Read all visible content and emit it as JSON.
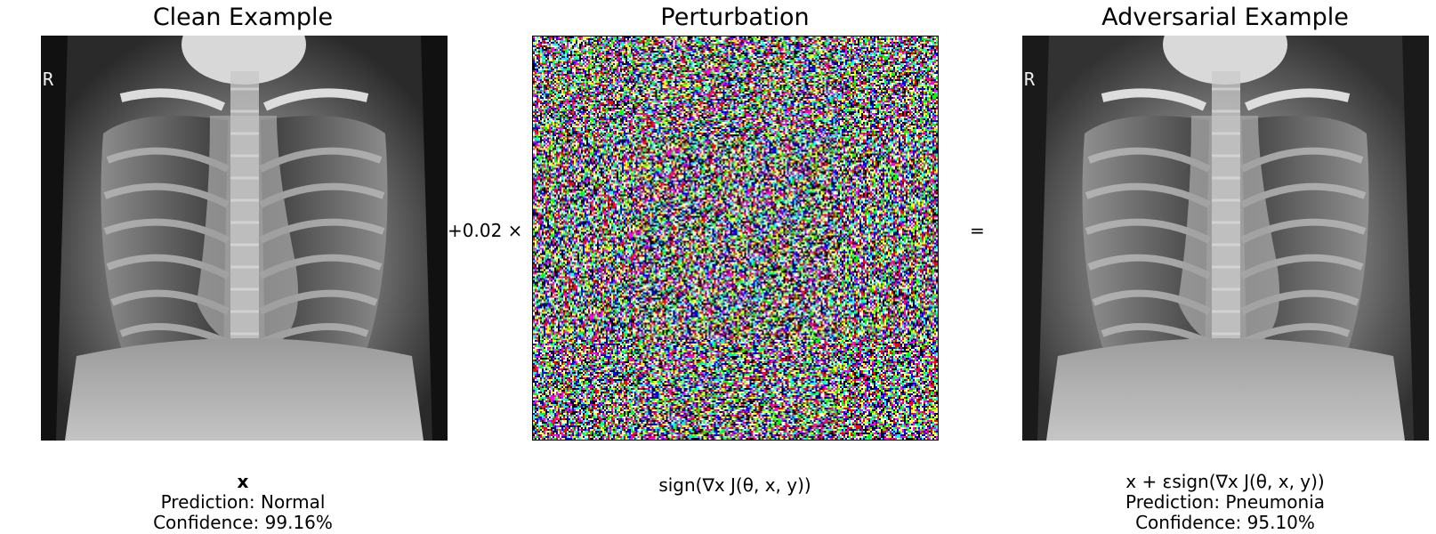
{
  "panels": {
    "clean": {
      "title": "Clean Example",
      "symbol": "x",
      "prediction": "Prediction: Normal",
      "confidence": "Confidence: 99.16%",
      "marker": "R"
    },
    "perturbation": {
      "title": "Perturbation",
      "formula": "sign(∇x J(θ, x, y))"
    },
    "adversarial": {
      "title": "Adversarial Example",
      "formula": "x + εsign(∇x J(θ, x, y))",
      "prediction": "Prediction: Pneumonia",
      "confidence": "Confidence: 95.10%",
      "marker": "R"
    }
  },
  "operators": {
    "multiply": "+0.02 ×",
    "equals": "="
  }
}
